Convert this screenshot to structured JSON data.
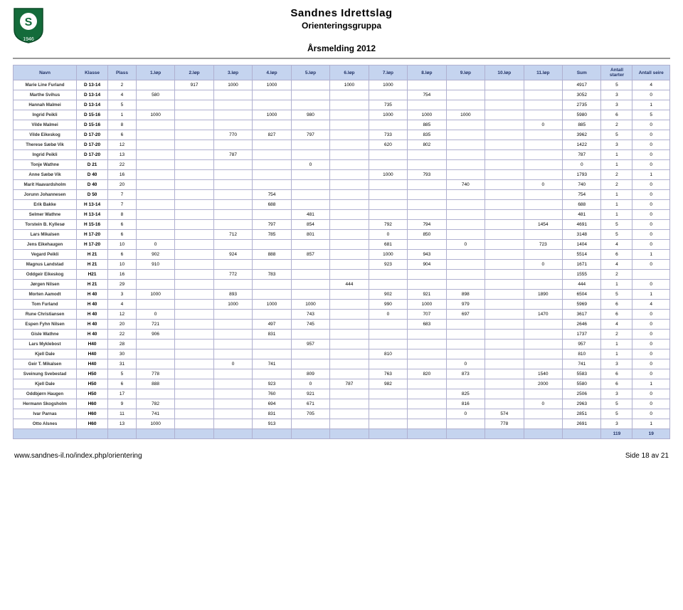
{
  "header": {
    "org": "Sandnes Idrettslag",
    "group": "Orienteringsgruppa",
    "report": "Årsmelding 2012"
  },
  "logo": {
    "shield_fill": "#146b3a",
    "shield_stroke": "#0c4a27",
    "letter": "S",
    "year": "1946"
  },
  "columns": [
    "Navn",
    "Klasse",
    "Plass",
    "1.løp",
    "2.løp",
    "3.løp",
    "4.løp",
    "5.løp",
    "6.løp",
    "7.løp",
    "8.løp",
    "9.løp",
    "10.løp",
    "11.løp",
    "Sum",
    "Antall starter",
    "Antall seire"
  ],
  "rows": [
    {
      "navn": "Marie Line Furland",
      "klasse": "D 13-14",
      "plass": "2",
      "l": [
        "",
        "917",
        "1000",
        "1000",
        "",
        "1000",
        "1000",
        "",
        "",
        "",
        ""
      ],
      "sum": "4917",
      "as": "5",
      "ase": "4"
    },
    {
      "navn": "Marthe Svihus",
      "klasse": "D 13-14",
      "plass": "4",
      "l": [
        "580",
        "",
        "",
        "",
        "",
        "",
        "",
        "754",
        "",
        "",
        ""
      ],
      "sum": "1718",
      "as": "3052",
      "ase": "3",
      "ase2": "0"
    },
    {
      "navn": "Hannah Malmei",
      "klasse": "D 13-14",
      "plass": "5",
      "l": [
        "",
        "",
        "",
        "",
        "",
        "",
        "735",
        "",
        "",
        "",
        ""
      ],
      "sum": "2000",
      "as": "2735",
      "ase": "3",
      "ase2": "1"
    },
    {
      "navn": "Ingrid Peikli",
      "klasse": "D 15-16",
      "plass": "1",
      "l": [
        "1000",
        "",
        "",
        "1000",
        "980",
        "",
        "1000",
        "1000",
        "1000",
        "",
        ""
      ],
      "sum": "5980",
      "as": "6",
      "ase": "5"
    },
    {
      "navn": "Vilde Malmei",
      "klasse": "D 15-16",
      "plass": "8",
      "l": [
        "",
        "",
        "",
        "",
        "",
        "",
        "",
        "885",
        "",
        "",
        "0"
      ],
      "sum": "885",
      "as": "2",
      "ase": "0"
    },
    {
      "navn": "Vilde Eikeskog",
      "klasse": "D 17-20",
      "plass": "6",
      "l": [
        "",
        "",
        "770",
        "827",
        "797",
        "",
        "733",
        "835",
        "",
        "",
        ""
      ],
      "sum": "3962",
      "as": "5",
      "ase": "0"
    },
    {
      "navn": "Therese Sæbø Vik",
      "klasse": "D 17-20",
      "plass": "12",
      "l": [
        "",
        "",
        "",
        "",
        "",
        "",
        "620",
        "802",
        "",
        "",
        ""
      ],
      "sum": "1422",
      "as": "3",
      "ase": "0"
    },
    {
      "navn": "Ingrid Peikli",
      "klasse": "D 17-20",
      "plass": "13",
      "l": [
        "",
        "",
        "787",
        "",
        "",
        "",
        "",
        "",
        "",
        "",
        ""
      ],
      "sum": "787",
      "as": "1",
      "ase": "0"
    },
    {
      "navn": "Tonje Wathne",
      "klasse": "D 21",
      "plass": "22",
      "l": [
        "",
        "",
        "",
        "",
        "0",
        "",
        "",
        "",
        "",
        "",
        ""
      ],
      "sum": "0",
      "as": "1",
      "ase": "0"
    },
    {
      "navn": "Anne Sæbø Vik",
      "klasse": "D 40",
      "plass": "16",
      "l": [
        "",
        "",
        "",
        "",
        "",
        "",
        "1000",
        "793",
        "",
        "",
        ""
      ],
      "sum": "1793",
      "as": "2",
      "ase": "1"
    },
    {
      "navn": "Marit Haavardsholm",
      "klasse": "D 40",
      "plass": "20",
      "l": [
        "",
        "",
        "",
        "",
        "",
        "",
        "",
        "",
        "740",
        "",
        "0"
      ],
      "sum": "740",
      "as": "2",
      "ase": "0"
    },
    {
      "navn": "Jorunn Johannesen",
      "klasse": "D 50",
      "plass": "7",
      "l": [
        "",
        "",
        "",
        "754",
        "",
        "",
        "",
        "",
        "",
        "",
        ""
      ],
      "sum": "754",
      "as": "1",
      "ase": "0"
    },
    {
      "navn": "Erik Bakke",
      "klasse": "H 13-14",
      "plass": "7",
      "l": [
        "",
        "",
        "",
        "688",
        "",
        "",
        "",
        "",
        "",
        "",
        ""
      ],
      "sum": "688",
      "as": "1",
      "ase": "0"
    },
    {
      "navn": "Selmer Wathne",
      "klasse": "H 13-14",
      "plass": "8",
      "l": [
        "",
        "",
        "",
        "",
        "481",
        "",
        "",
        "",
        "",
        "",
        ""
      ],
      "sum": "481",
      "as": "1",
      "ase": "0"
    },
    {
      "navn": "Torstein B. Kyllesø",
      "klasse": "H 15-16",
      "plass": "6",
      "l": [
        "",
        "",
        "",
        "797",
        "854",
        "",
        "792",
        "794",
        "",
        "",
        "1454"
      ],
      "sum": "4691",
      "as": "5",
      "ase": "0"
    },
    {
      "navn": "Lars Mikalsen",
      "klasse": "H 17-20",
      "plass": "6",
      "l": [
        "",
        "",
        "712",
        "785",
        "801",
        "",
        "0",
        "850",
        "",
        "",
        ""
      ],
      "sum": "3148",
      "as": "5",
      "ase": "0"
    },
    {
      "navn": "Jens Eikehaugen",
      "klasse": "H 17-20",
      "plass": "10",
      "l": [
        "0",
        "",
        "",
        "",
        "",
        "",
        "681",
        "",
        "0",
        "",
        "723"
      ],
      "sum": "1404",
      "as": "4",
      "ase": "0"
    },
    {
      "navn": "Vegard Peikli",
      "klasse": "H 21",
      "plass": "6",
      "l": [
        "902",
        "",
        "924",
        "888",
        "857",
        "",
        "1000",
        "943",
        "",
        "",
        ""
      ],
      "sum": "5514",
      "as": "6",
      "ase": "1"
    },
    {
      "navn": "Magnus Landstad",
      "klasse": "H 21",
      "plass": "10",
      "l": [
        "910",
        "",
        "",
        "",
        "",
        "",
        "923",
        "904",
        "",
        "",
        "0"
      ],
      "sum": "1671",
      "as": "4",
      "ase": "0"
    },
    {
      "navn": "Oddgeir Eikeskog",
      "klasse": "H21",
      "plass": "16",
      "l": [
        "",
        "",
        "772",
        "783",
        "",
        "",
        "",
        "",
        "",
        "",
        ""
      ],
      "sum": "1555",
      "as": "2",
      "ase": ""
    },
    {
      "navn": "Jørgen Nilsen",
      "klasse": "H 21",
      "plass": "29",
      "l": [
        "",
        "",
        "",
        "",
        "",
        "444",
        "",
        "",
        "",
        "",
        ""
      ],
      "sum": "444",
      "as": "1",
      "ase": "0"
    },
    {
      "navn": "Morten Aamodt",
      "klasse": "H 40",
      "plass": "3",
      "l": [
        "1000",
        "",
        "893",
        "",
        "",
        "",
        "902",
        "921",
        "898",
        "",
        "1890"
      ],
      "sum": "6504",
      "as": "5",
      "ase": "1"
    },
    {
      "navn": "Tom Furland",
      "klasse": "H 40",
      "plass": "4",
      "l": [
        "",
        "",
        "1000",
        "1000",
        "1000",
        "",
        "990",
        "1000",
        "979",
        "",
        ""
      ],
      "sum": "5969",
      "as": "6",
      "ase": "4"
    },
    {
      "navn": "Rune Christiansen",
      "klasse": "H 40",
      "plass": "12",
      "l": [
        "0",
        "",
        "",
        "",
        "743",
        "",
        "0",
        "707",
        "697",
        "",
        "1470"
      ],
      "sum": "3617",
      "as": "6",
      "ase": "0"
    },
    {
      "navn": "Espen Fyhn Nilsen",
      "klasse": "H 40",
      "plass": "20",
      "l": [
        "721",
        "",
        "",
        "497",
        "745",
        "",
        "",
        "683",
        "",
        "",
        ""
      ],
      "sum": "2646",
      "as": "4",
      "ase": "0"
    },
    {
      "navn": "Gisle Wathne",
      "klasse": "H 40",
      "plass": "22",
      "l": [
        "906",
        "",
        "",
        "831",
        "",
        "",
        "",
        "",
        "",
        "",
        ""
      ],
      "sum": "1737",
      "as": "2",
      "ase": "0"
    },
    {
      "navn": "Lars Myklebost",
      "klasse": "H40",
      "plass": "28",
      "l": [
        "",
        "",
        "",
        "",
        "957",
        "",
        "",
        "",
        "",
        "",
        ""
      ],
      "sum": "957",
      "as": "1",
      "ase": "0"
    },
    {
      "navn": "Kjell Dale",
      "klasse": "H40",
      "plass": "30",
      "l": [
        "",
        "",
        "",
        "",
        "",
        "",
        "810",
        "",
        "",
        "",
        ""
      ],
      "sum": "810",
      "as": "1",
      "ase": "0"
    },
    {
      "navn": "Geir T. Mikalsen",
      "klasse": "H40",
      "plass": "31",
      "l": [
        "",
        "",
        "0",
        "741",
        "",
        "",
        "",
        "",
        "0",
        "",
        ""
      ],
      "sum": "741",
      "as": "3",
      "ase": "0"
    },
    {
      "navn": "Sveinung Svebestad",
      "klasse": "H50",
      "plass": "5",
      "l": [
        "778",
        "",
        "",
        "",
        "809",
        "",
        "763",
        "820",
        "873",
        "",
        "1540"
      ],
      "sum": "5583",
      "as": "6",
      "ase": "0"
    },
    {
      "navn": "Kjell Dale",
      "klasse": "H50",
      "plass": "6",
      "l": [
        "888",
        "",
        "",
        "923",
        "0",
        "787",
        "982",
        "",
        "",
        "",
        "2000"
      ],
      "sum": "5580",
      "as": "6",
      "ase": "1"
    },
    {
      "navn": "Oddbjørn Haugen",
      "klasse": "H50",
      "plass": "17",
      "l": [
        "",
        "",
        "",
        "760",
        "921",
        "",
        "",
        "",
        "825",
        "",
        ""
      ],
      "sum": "2506",
      "as": "3",
      "ase": "0"
    },
    {
      "navn": "Hermann Skogsholm",
      "klasse": "H60",
      "plass": "9",
      "l": [
        "782",
        "",
        "",
        "694",
        "671",
        "",
        "",
        "",
        "816",
        "",
        "0"
      ],
      "sum": "2963",
      "as": "5",
      "ase": "0"
    },
    {
      "navn": "Ivar Parnas",
      "klasse": "H60",
      "plass": "11",
      "l": [
        "741",
        "",
        "",
        "831",
        "705",
        "",
        "",
        "",
        "0",
        "574",
        ""
      ],
      "sum": "2851",
      "as": "5",
      "ase": "0"
    },
    {
      "navn": "Otto Alsnes",
      "klasse": "H60",
      "plass": "13",
      "l": [
        "1000",
        "",
        "",
        "913",
        "",
        "",
        "",
        "",
        "",
        "778",
        ""
      ],
      "sum": "2691",
      "as": "3",
      "ase": "1"
    }
  ],
  "totals": {
    "as": "119",
    "ase": "19"
  },
  "footer": {
    "url": "www.sandnes-il.no/index.php/orientering",
    "page": "Side 18 av 21"
  },
  "colors": {
    "header_bg": "#c5d4ef",
    "header_text": "#223366",
    "border": "#b0b0d0"
  }
}
